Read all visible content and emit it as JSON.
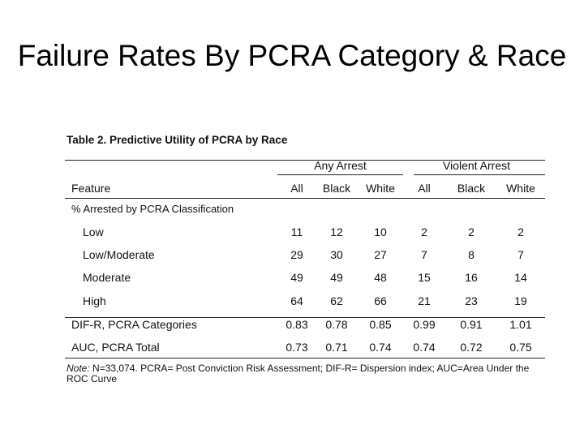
{
  "slide": {
    "title": "Failure Rates By PCRA Category & Race"
  },
  "table": {
    "caption": "Table 2. Predictive Utility of PCRA by Race",
    "group_headers": [
      "Any Arrest",
      "Violent Arrest"
    ],
    "feature_header": "Feature",
    "column_headers": [
      "All",
      "Black",
      "White",
      "All",
      "Black",
      "White"
    ],
    "section_header": "% Arrested by PCRA Classification",
    "rows": [
      {
        "label": "Low",
        "values": [
          "11",
          "12",
          "10",
          "2",
          "2",
          "2"
        ]
      },
      {
        "label": "Low/Moderate",
        "values": [
          "29",
          "30",
          "27",
          "7",
          "8",
          "7"
        ]
      },
      {
        "label": "Moderate",
        "values": [
          "49",
          "49",
          "48",
          "15",
          "16",
          "14"
        ]
      },
      {
        "label": "High",
        "values": [
          "64",
          "62",
          "66",
          "21",
          "23",
          "19"
        ]
      },
      {
        "label": "DIF-R, PCRA Categories",
        "values": [
          "0.83",
          "0.78",
          "0.85",
          "0.99",
          "0.91",
          "1.01"
        ]
      },
      {
        "label": "AUC, PCRA Total",
        "values": [
          "0.73",
          "0.71",
          "0.74",
          "0.74",
          "0.72",
          "0.75"
        ]
      }
    ],
    "note_label": "Note:",
    "note_text": "N=33,074.   PCRA= Post Conviction Risk Assessment; DIF-R= Dispersion index; AUC=Area Under the ROC Curve"
  }
}
